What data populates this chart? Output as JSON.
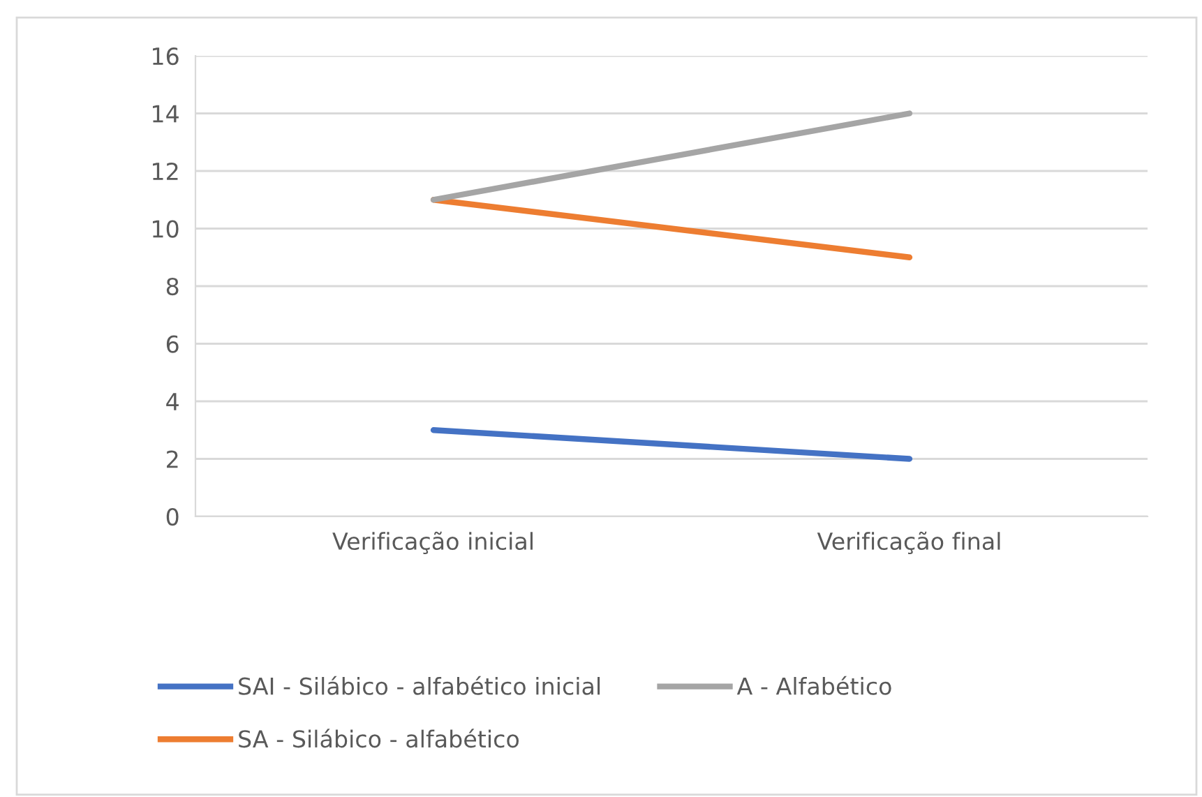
{
  "chart_data": {
    "type": "line",
    "categories": [
      "Verificação inicial",
      "Verificação final"
    ],
    "series": [
      {
        "name": "SAI - Silábico - alfabético inicial",
        "color": "#4472c4",
        "values": [
          3,
          2
        ]
      },
      {
        "name": "SA - Silábico - alfabético",
        "color": "#ed7d31",
        "values": [
          11,
          9
        ]
      },
      {
        "name": "A - Alfabético",
        "color": "#a5a5a5",
        "values": [
          11,
          14
        ]
      }
    ],
    "ylim": [
      0,
      16
    ],
    "yticks": [
      0,
      2,
      4,
      6,
      8,
      10,
      12,
      14,
      16
    ],
    "grid": "y",
    "legend": "bottom",
    "marker": "none",
    "line_style": "solid"
  }
}
